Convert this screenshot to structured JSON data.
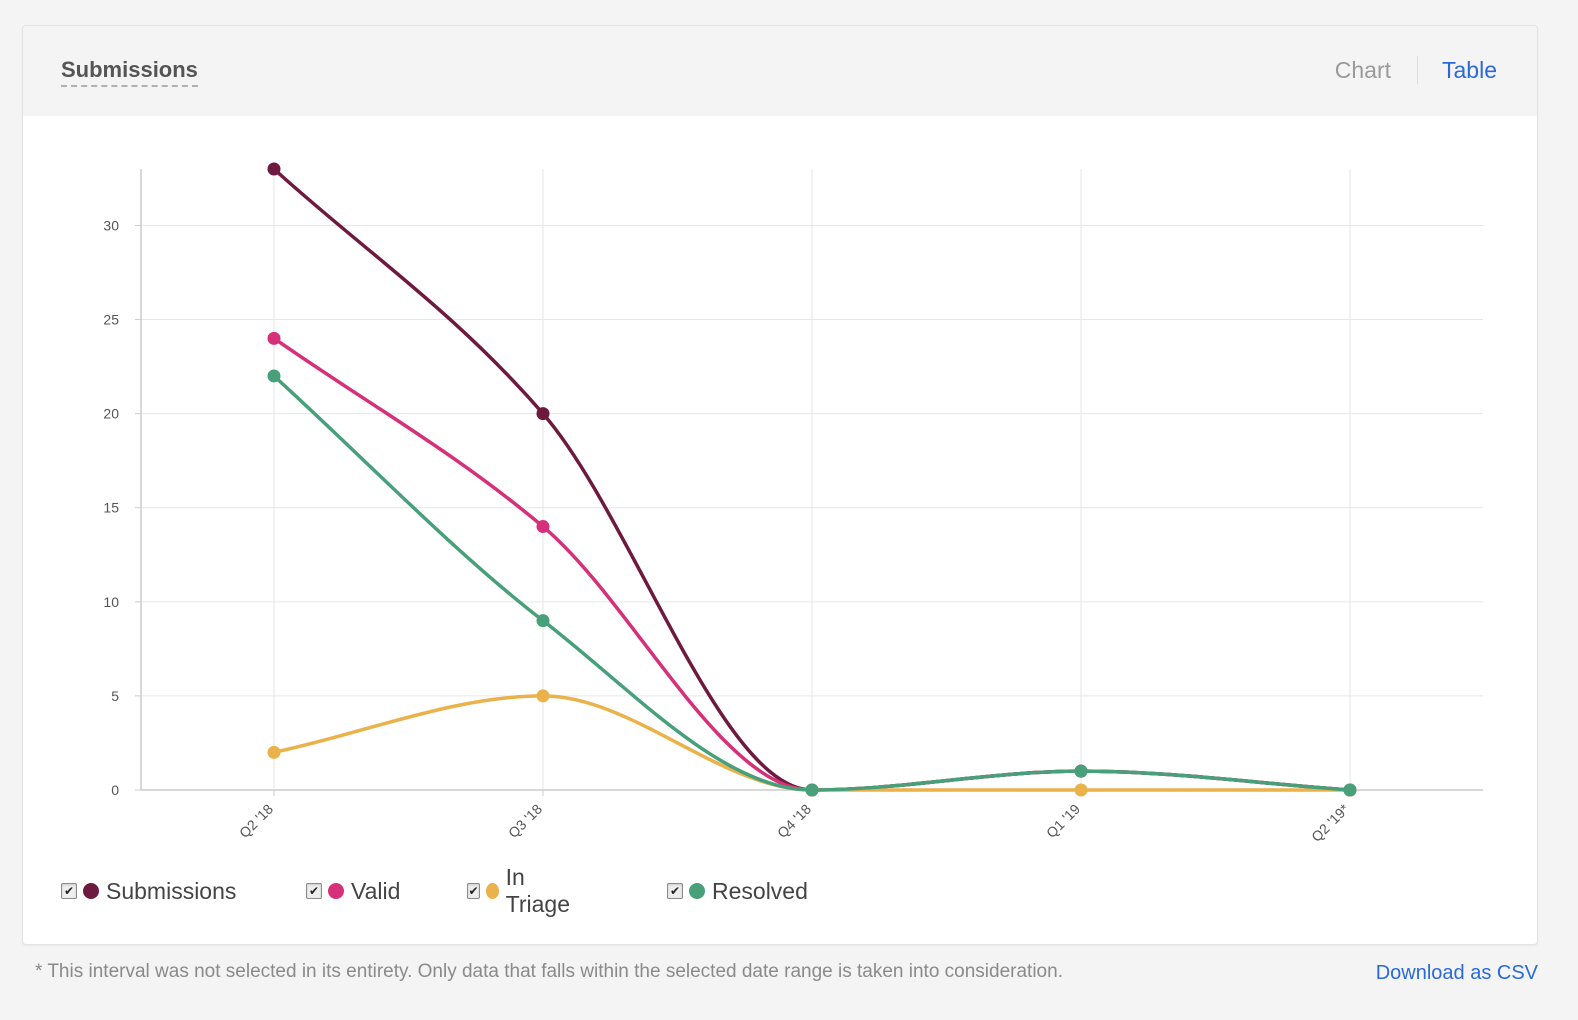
{
  "card": {
    "title": "Submissions",
    "toggle_chart_label": "Chart",
    "toggle_table_label": "Table"
  },
  "chart_data": {
    "type": "line",
    "title": "",
    "xlabel": "",
    "ylabel": "",
    "categories": [
      "Q2 '18",
      "Q3 '18",
      "Q4 '18",
      "Q1 '19",
      "Q2 '19*"
    ],
    "ylim": [
      0,
      33
    ],
    "yticks": [
      0,
      5,
      10,
      15,
      20,
      25,
      30
    ],
    "grid": true,
    "legend_position": "bottom-left",
    "series": [
      {
        "name": "Submissions",
        "color": "#6e1a3e",
        "values": [
          33,
          20,
          0,
          1,
          0
        ]
      },
      {
        "name": "Valid",
        "color": "#d6307a",
        "values": [
          24,
          14,
          0,
          1,
          0
        ]
      },
      {
        "name": "In Triage",
        "color": "#ebb14a",
        "values": [
          2,
          5,
          0,
          0,
          0
        ]
      },
      {
        "name": "Resolved",
        "color": "#47a07a",
        "values": [
          22,
          9,
          0,
          1,
          0
        ]
      }
    ]
  },
  "legend": {
    "checkbox_mark": "✔",
    "items": [
      {
        "label": "Submissions",
        "checked": true
      },
      {
        "label": "Valid",
        "checked": true
      },
      {
        "label": "In Triage",
        "checked": true
      },
      {
        "label": "Resolved",
        "checked": true
      }
    ]
  },
  "footer": {
    "note": "* This interval was not selected in its entirety. Only data that falls within the selected date range is taken into consideration.",
    "download_label": "Download as CSV"
  }
}
